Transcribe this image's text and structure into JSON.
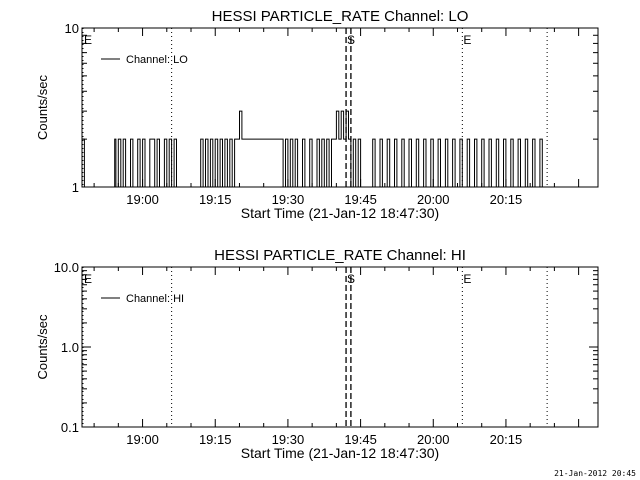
{
  "chart_data": [
    {
      "type": "line",
      "title": "HESSI PARTICLE_RATE Channel: LO",
      "xlabel": "Start Time (21-Jan-12 18:47:30)",
      "ylabel": "Counts/sec",
      "yscale": "log",
      "ylim": [
        1,
        10
      ],
      "xlim": [
        "18:47:30",
        "20:34:00"
      ],
      "yticks": [
        "1",
        "10"
      ],
      "xticks": [
        "19:00",
        "19:15",
        "19:30",
        "19:45",
        "20:00",
        "20:15"
      ],
      "legend": {
        "position": "top-left",
        "entries": [
          "Channel: LO"
        ]
      },
      "markers": [
        {
          "time": "18:47:30",
          "label": "E",
          "style": "dotted"
        },
        {
          "time": "19:06:00",
          "label": "",
          "style": "dotted"
        },
        {
          "time": "19:42:00",
          "label": "S",
          "style": "dashed"
        },
        {
          "time": "19:43:00",
          "label": "",
          "style": "dashed"
        },
        {
          "time": "20:06:00",
          "label": "E",
          "style": "dotted"
        },
        {
          "time": "20:23:30",
          "label": "",
          "style": "dotted"
        }
      ],
      "series": [
        {
          "name": "Channel: LO",
          "points": [
            [
              "18:47:30",
              2
            ],
            [
              "18:47:45",
              2
            ],
            [
              "18:48:00",
              1
            ],
            [
              "18:54:00",
              1
            ],
            [
              "18:54:15",
              2
            ],
            [
              "18:54:30",
              1
            ],
            [
              "18:55:00",
              2
            ],
            [
              "18:55:30",
              1
            ],
            [
              "18:56:00",
              2
            ],
            [
              "18:56:30",
              1
            ],
            [
              "18:57:30",
              2
            ],
            [
              "18:58:00",
              1
            ],
            [
              "18:59:00",
              2
            ],
            [
              "18:59:30",
              1
            ],
            [
              "19:00:00",
              2
            ],
            [
              "19:00:30",
              1
            ],
            [
              "19:01:30",
              2
            ],
            [
              "19:02:00",
              2
            ],
            [
              "19:02:30",
              1
            ],
            [
              "19:03:00",
              2
            ],
            [
              "19:03:30",
              1
            ],
            [
              "19:04:30",
              2
            ],
            [
              "19:05:00",
              1
            ],
            [
              "19:05:30",
              2
            ],
            [
              "19:06:00",
              1
            ],
            [
              "19:06:30",
              2
            ],
            [
              "19:07:00",
              1
            ],
            [
              "19:11:30",
              1
            ],
            [
              "19:12:00",
              2
            ],
            [
              "19:12:30",
              1
            ],
            [
              "19:13:00",
              2
            ],
            [
              "19:13:30",
              1
            ],
            [
              "19:14:00",
              2
            ],
            [
              "19:14:30",
              1
            ],
            [
              "19:15:00",
              2
            ],
            [
              "19:15:30",
              1
            ],
            [
              "19:16:00",
              2
            ],
            [
              "19:16:30",
              1
            ],
            [
              "19:17:00",
              2
            ],
            [
              "19:17:30",
              1
            ],
            [
              "19:18:00",
              2
            ],
            [
              "19:18:30",
              1
            ],
            [
              "19:19:00",
              2
            ],
            [
              "19:19:30",
              2
            ],
            [
              "19:20:00",
              3
            ],
            [
              "19:20:30",
              2
            ],
            [
              "19:28:30",
              2
            ],
            [
              "19:29:00",
              1
            ],
            [
              "19:29:30",
              2
            ],
            [
              "19:30:00",
              1
            ],
            [
              "19:30:30",
              2
            ],
            [
              "19:31:00",
              1
            ],
            [
              "19:31:30",
              2
            ],
            [
              "19:32:00",
              1
            ],
            [
              "19:33:00",
              2
            ],
            [
              "19:33:30",
              1
            ],
            [
              "19:34:30",
              2
            ],
            [
              "19:35:00",
              1
            ],
            [
              "19:36:00",
              2
            ],
            [
              "19:36:30",
              1
            ],
            [
              "19:37:00",
              2
            ],
            [
              "19:37:30",
              1
            ],
            [
              "19:38:00",
              2
            ],
            [
              "19:38:30",
              1
            ],
            [
              "19:39:00",
              2
            ],
            [
              "19:39:30",
              2
            ],
            [
              "19:40:00",
              3
            ],
            [
              "19:40:30",
              2
            ],
            [
              "19:41:00",
              3
            ],
            [
              "19:41:30",
              2
            ],
            [
              "19:42:00",
              3
            ],
            [
              "19:42:30",
              2
            ],
            [
              "19:43:00",
              1
            ],
            [
              "19:43:30",
              2
            ],
            [
              "19:44:00",
              1
            ],
            [
              "19:44:30",
              2
            ],
            [
              "19:45:00",
              1
            ],
            [
              "19:47:00",
              1
            ],
            [
              "19:47:30",
              2
            ],
            [
              "19:48:00",
              1
            ],
            [
              "19:49:00",
              2
            ],
            [
              "19:49:30",
              1
            ],
            [
              "19:50:30",
              2
            ],
            [
              "19:51:00",
              1
            ],
            [
              "19:52:00",
              2
            ],
            [
              "19:52:30",
              1
            ],
            [
              "19:53:30",
              2
            ],
            [
              "19:54:00",
              1
            ],
            [
              "19:55:00",
              2
            ],
            [
              "19:55:30",
              1
            ],
            [
              "19:56:30",
              2
            ],
            [
              "19:57:00",
              1
            ],
            [
              "19:58:00",
              2
            ],
            [
              "19:58:30",
              1
            ],
            [
              "19:59:30",
              2
            ],
            [
              "20:00:00",
              1
            ],
            [
              "20:01:00",
              2
            ],
            [
              "20:01:30",
              1
            ],
            [
              "20:02:30",
              2
            ],
            [
              "20:03:00",
              1
            ],
            [
              "20:04:00",
              2
            ],
            [
              "20:04:30",
              1
            ],
            [
              "20:05:30",
              2
            ],
            [
              "20:06:00",
              1
            ],
            [
              "20:07:00",
              2
            ],
            [
              "20:07:30",
              1
            ],
            [
              "20:08:30",
              2
            ],
            [
              "20:09:00",
              1
            ],
            [
              "20:10:00",
              2
            ],
            [
              "20:10:30",
              1
            ],
            [
              "20:11:30",
              2
            ],
            [
              "20:12:00",
              1
            ],
            [
              "20:13:00",
              2
            ],
            [
              "20:13:30",
              1
            ],
            [
              "20:14:30",
              2
            ],
            [
              "20:15:00",
              1
            ],
            [
              "20:16:00",
              2
            ],
            [
              "20:16:30",
              1
            ],
            [
              "20:17:30",
              2
            ],
            [
              "20:18:00",
              1
            ],
            [
              "20:19:00",
              2
            ],
            [
              "20:19:30",
              1
            ],
            [
              "20:20:30",
              2
            ],
            [
              "20:21:00",
              1
            ],
            [
              "20:22:00",
              2
            ],
            [
              "20:22:30",
              1
            ],
            [
              "20:23:00",
              1
            ]
          ]
        }
      ]
    },
    {
      "type": "line",
      "title": "HESSI PARTICLE_RATE Channel: HI",
      "xlabel": "Start Time (21-Jan-12 18:47:30)",
      "ylabel": "Counts/sec",
      "yscale": "log",
      "ylim": [
        0.1,
        10
      ],
      "xlim": [
        "18:47:30",
        "20:34:00"
      ],
      "yticks": [
        "0.1",
        "1.0",
        "10.0"
      ],
      "xticks": [
        "19:00",
        "19:15",
        "19:30",
        "19:45",
        "20:00",
        "20:15"
      ],
      "legend": {
        "position": "top-left",
        "entries": [
          "Channel: HI"
        ]
      },
      "markers": [
        {
          "time": "18:47:30",
          "label": "E",
          "style": "dotted"
        },
        {
          "time": "19:06:00",
          "label": "",
          "style": "dotted"
        },
        {
          "time": "19:42:00",
          "label": "S",
          "style": "dashed"
        },
        {
          "time": "19:43:00",
          "label": "",
          "style": "dashed"
        },
        {
          "time": "20:06:00",
          "label": "E",
          "style": "dotted"
        },
        {
          "time": "20:23:30",
          "label": "",
          "style": "dotted"
        }
      ],
      "series": [
        {
          "name": "Channel: HI",
          "points": []
        }
      ]
    }
  ],
  "footer": {
    "timestamp": "21-Jan-2012 20:45"
  }
}
